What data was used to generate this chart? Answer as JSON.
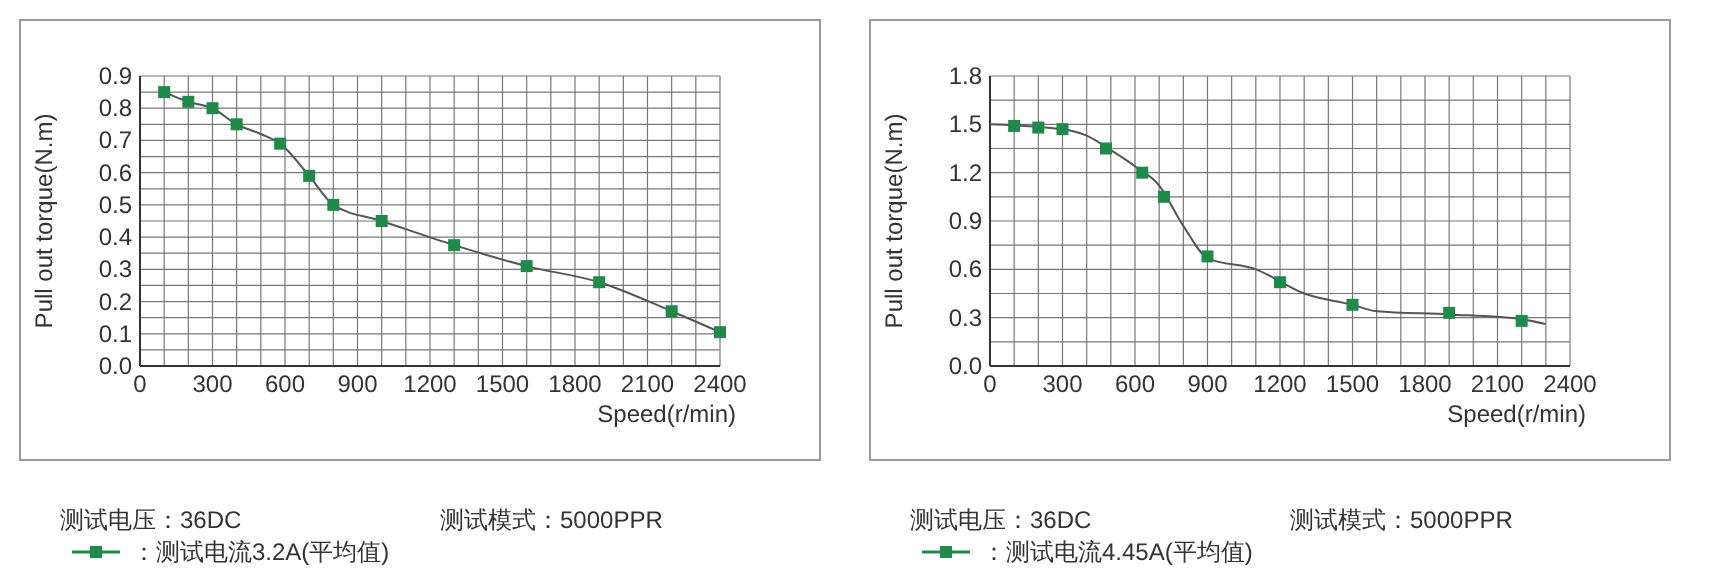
{
  "chart_data": [
    {
      "type": "line",
      "xlabel": "Speed(r/min)",
      "ylabel": "Pull out torque(N.m)",
      "xlim": [
        0,
        2400
      ],
      "ylim": [
        0,
        0.9
      ],
      "xticks": [
        0,
        {
          "value": 100,
          "label": null
        },
        {
          "value": 200,
          "label": null
        },
        300,
        {
          "value": 400,
          "label": null
        },
        {
          "value": 500,
          "label": null
        },
        600,
        {
          "value": 700,
          "label": null
        },
        {
          "value": 800,
          "label": null
        },
        900,
        {
          "value": 1000,
          "label": null
        },
        {
          "value": 1100,
          "label": null
        },
        1200,
        {
          "value": 1300,
          "label": null
        },
        {
          "value": 1400,
          "label": null
        },
        1500,
        {
          "value": 1600,
          "label": null
        },
        {
          "value": 1700,
          "label": null
        },
        1800,
        {
          "value": 1900,
          "label": null
        },
        {
          "value": 2000,
          "label": null
        },
        2100,
        {
          "value": 2200,
          "label": null
        },
        {
          "value": 2300,
          "label": null
        },
        2400
      ],
      "yticks": [
        {
          "value": 0,
          "label": "0.0"
        },
        {
          "value": 0.05,
          "label": null
        },
        0.1,
        {
          "value": 0.15,
          "label": null
        },
        0.2,
        {
          "value": 0.25,
          "label": null
        },
        0.3,
        {
          "value": 0.35,
          "label": null
        },
        0.4,
        {
          "value": 0.45,
          "label": null
        },
        0.5,
        {
          "value": 0.55,
          "label": null
        },
        0.6,
        {
          "value": 0.65,
          "label": null
        },
        0.7,
        {
          "value": 0.75,
          "label": null
        },
        0.8,
        {
          "value": 0.85,
          "label": null
        },
        0.9
      ],
      "grid": true,
      "legend": "bottom left",
      "series": [
        {
          "type": "line",
          "color": "#555555",
          "marker": "none",
          "x": [
            100,
            200,
            300,
            400,
            500,
            580,
            700,
            800,
            1000,
            1300,
            1600,
            1900,
            2200,
            2400
          ],
          "values": [
            0.85,
            0.82,
            0.8,
            0.75,
            0.72,
            0.69,
            0.59,
            0.5,
            0.45,
            0.375,
            0.31,
            0.26,
            0.17,
            0.105
          ]
        },
        {
          "type": "scatter",
          "name": "：测试电流3.2A(平均值)",
          "color": "#1f8a4c",
          "marker": "square",
          "x": [
            100,
            200,
            300,
            400,
            580,
            700,
            800,
            1000,
            1300,
            1600,
            1900,
            2200,
            2400
          ],
          "values": [
            0.85,
            0.82,
            0.8,
            0.75,
            0.69,
            0.59,
            0.5,
            0.45,
            0.375,
            0.31,
            0.26,
            0.17,
            0.105
          ]
        }
      ],
      "annotations": [
        "测试电压：36DC",
        "测试模式：5000PPR"
      ]
    },
    {
      "type": "line",
      "xlabel": "Speed(r/min)",
      "ylabel": "Pull out torque(N.m)",
      "xlim": [
        0,
        2400
      ],
      "ylim": [
        0,
        1.8
      ],
      "xticks": [
        0,
        {
          "value": 100,
          "label": null
        },
        {
          "value": 200,
          "label": null
        },
        300,
        {
          "value": 400,
          "label": null
        },
        {
          "value": 500,
          "label": null
        },
        600,
        {
          "value": 700,
          "label": null
        },
        {
          "value": 800,
          "label": null
        },
        900,
        {
          "value": 1000,
          "label": null
        },
        {
          "value": 1100,
          "label": null
        },
        1200,
        {
          "value": 1300,
          "label": null
        },
        {
          "value": 1400,
          "label": null
        },
        1500,
        {
          "value": 1600,
          "label": null
        },
        {
          "value": 1700,
          "label": null
        },
        1800,
        {
          "value": 1900,
          "label": null
        },
        {
          "value": 2000,
          "label": null
        },
        2100,
        {
          "value": 2200,
          "label": null
        },
        {
          "value": 2300,
          "label": null
        },
        2400
      ],
      "yticks": [
        {
          "value": 0,
          "label": "0.0"
        },
        {
          "value": 0.15,
          "label": null
        },
        0.3,
        {
          "value": 0.45,
          "label": null
        },
        0.6,
        {
          "value": 0.75,
          "label": null
        },
        0.9,
        {
          "value": 1.05,
          "label": null
        },
        1.2,
        {
          "value": 1.35,
          "label": null
        },
        1.5,
        {
          "value": 1.65,
          "label": null
        },
        1.8
      ],
      "grid": true,
      "legend": "bottom left",
      "series": [
        {
          "type": "line",
          "color": "#555555",
          "marker": "none",
          "x": [
            0,
            300,
            400,
            500,
            600,
            700,
            800,
            900,
            1100,
            1300,
            1500,
            1600,
            1900,
            2200,
            2300
          ],
          "values": [
            1.5,
            1.47,
            1.43,
            1.34,
            1.24,
            1.12,
            0.87,
            0.67,
            0.6,
            0.45,
            0.38,
            0.34,
            0.32,
            0.29,
            0.26
          ]
        },
        {
          "type": "scatter",
          "name": "：测试电流4.45A(平均值)",
          "color": "#1f8a4c",
          "marker": "square",
          "x": [
            100,
            200,
            300,
            480,
            630,
            720,
            900,
            1200,
            1500,
            1900,
            2200
          ],
          "values": [
            1.49,
            1.48,
            1.47,
            1.35,
            1.2,
            1.05,
            0.68,
            0.52,
            0.38,
            0.33,
            0.28
          ]
        }
      ],
      "annotations": [
        "测试电压：36DC",
        "测试模式：5000PPR"
      ]
    }
  ]
}
